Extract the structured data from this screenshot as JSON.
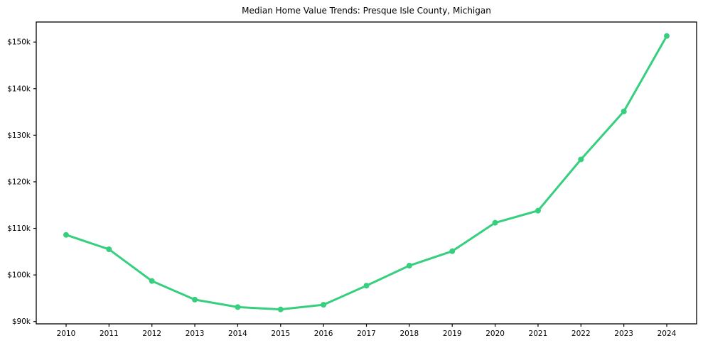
{
  "chart_data": {
    "type": "line",
    "title": "Median Home Value Trends: Presque Isle County, Michigan",
    "x": [
      "2010",
      "2011",
      "2012",
      "2013",
      "2014",
      "2015",
      "2016",
      "2017",
      "2018",
      "2019",
      "2020",
      "2021",
      "2022",
      "2023",
      "2024"
    ],
    "values": [
      108600,
      105500,
      98700,
      94700,
      93100,
      92600,
      93600,
      97700,
      102000,
      105100,
      111200,
      113800,
      124800,
      135100,
      151300
    ],
    "y_ticks": [
      {
        "value": 90000,
        "label": "$90k"
      },
      {
        "value": 100000,
        "label": "$100k"
      },
      {
        "value": 110000,
        "label": "$110k"
      },
      {
        "value": 120000,
        "label": "$120k"
      },
      {
        "value": 130000,
        "label": "$130k"
      },
      {
        "value": 140000,
        "label": "$140k"
      },
      {
        "value": 150000,
        "label": "$150k"
      }
    ],
    "ylim": [
      89500,
      154300
    ],
    "xlabel": "",
    "ylabel": "",
    "grid": false,
    "legend": null,
    "line_color": "#36cf7e",
    "marker": "circle",
    "axis_color": "#000000"
  }
}
